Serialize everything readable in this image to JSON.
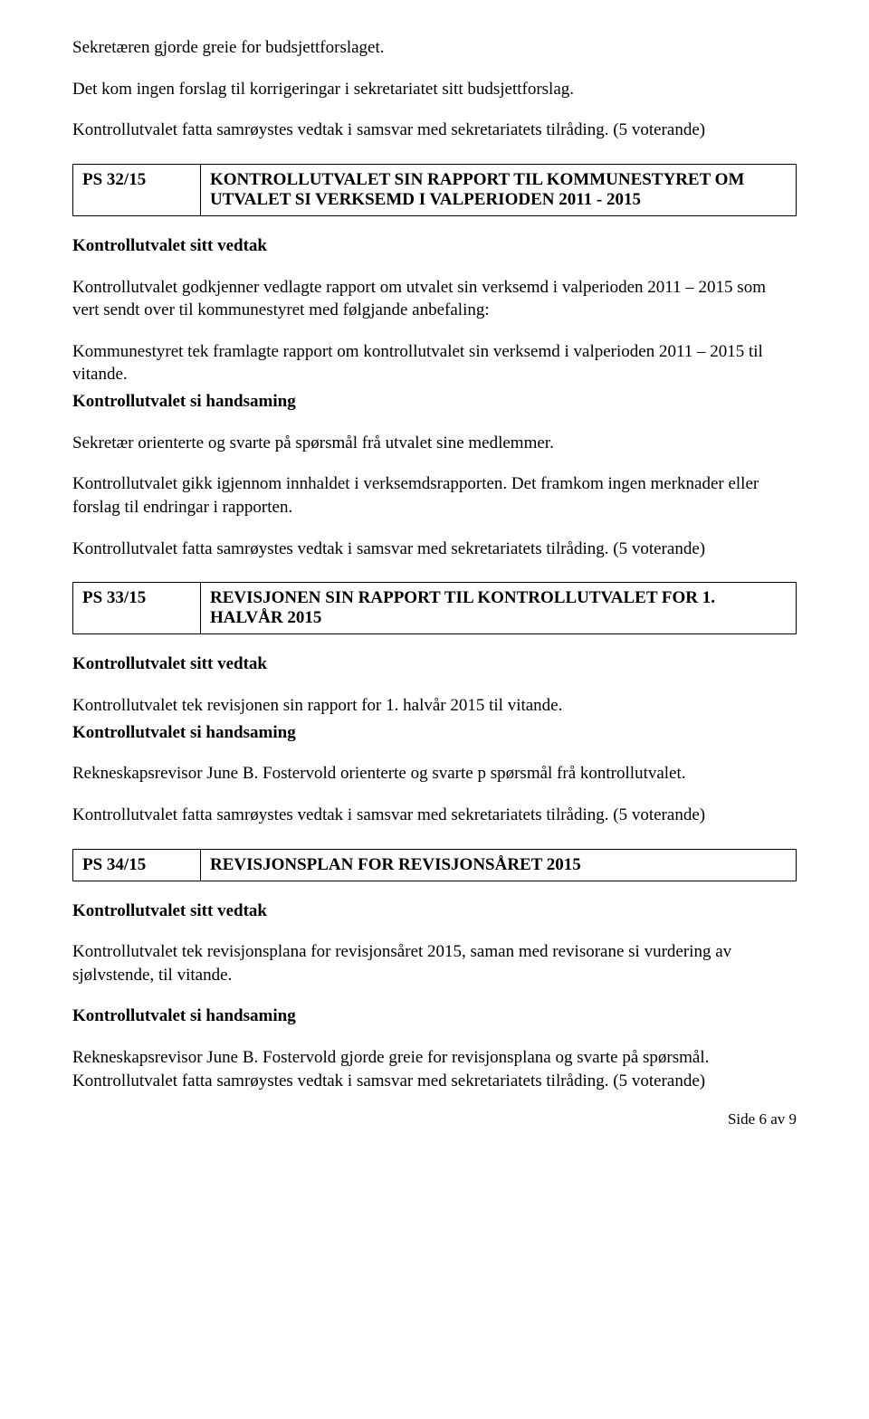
{
  "intro": {
    "line1": "Sekretæren gjorde greie for budsjettforslaget.",
    "line2": "Det kom ingen forslag til korrigeringar i sekretariatet sitt budsjettforslag.",
    "line3": "Kontrollutvalet fatta samrøystes vedtak i samsvar med sekretariatets tilråding. (5 voterande)"
  },
  "case32": {
    "code": "PS 32/15",
    "title": "KONTROLLUTVALET SIN RAPPORT TIL KOMMUNESTYRET OM UTVALET SI VERKSEMD I VALPERIODEN 2011 - 2015",
    "h_vedtak": "Kontrollutvalet sitt vedtak",
    "p1": "Kontrollutvalet godkjenner vedlagte rapport om utvalet sin verksemd i valperioden 2011 – 2015 som vert sendt over til kommunestyret med følgjande anbefaling:",
    "p2": "Kommunestyret tek framlagte rapport om kontrollutvalet sin verksemd i valperioden 2011 – 2015 til vitande.",
    "h_handsaming": "Kontrollutvalet si handsaming",
    "p3": "Sekretær orienterte og svarte på spørsmål frå utvalet sine medlemmer.",
    "p4": "Kontrollutvalet gikk igjennom innhaldet i verksemdsrapporten. Det framkom ingen merknader eller forslag til endringar i rapporten.",
    "p5": "Kontrollutvalet fatta samrøystes vedtak i samsvar med sekretariatets tilråding. (5 voterande)"
  },
  "case33": {
    "code": "PS 33/15",
    "title": "REVISJONEN SIN RAPPORT TIL KONTROLLUTVALET FOR 1. HALVÅR 2015",
    "h_vedtak": "Kontrollutvalet sitt vedtak",
    "p1": "Kontrollutvalet tek revisjonen sin rapport for 1. halvår 2015 til vitande.",
    "h_handsaming": "Kontrollutvalet si handsaming",
    "p2": "Rekneskapsrevisor June B. Fostervold orienterte og svarte p spørsmål frå kontrollutvalet.",
    "p3": "Kontrollutvalet fatta samrøystes vedtak i samsvar med sekretariatets tilråding. (5 voterande)"
  },
  "case34": {
    "code": "PS 34/15",
    "title": "REVISJONSPLAN FOR REVISJONSÅRET 2015",
    "h_vedtak": "Kontrollutvalet sitt vedtak",
    "p1": "Kontrollutvalet tek revisjonsplana for revisjonsåret 2015, saman med revisorane si vurdering av sjølvstende, til vitande.",
    "h_handsaming": "Kontrollutvalet si handsaming",
    "p2": "Rekneskapsrevisor June B. Fostervold gjorde greie for revisjonsplana og svarte på spørsmål. Kontrollutvalet fatta samrøystes vedtak i samsvar med sekretariatets tilråding. (5 voterande)"
  },
  "footer": "Side 6 av 9"
}
